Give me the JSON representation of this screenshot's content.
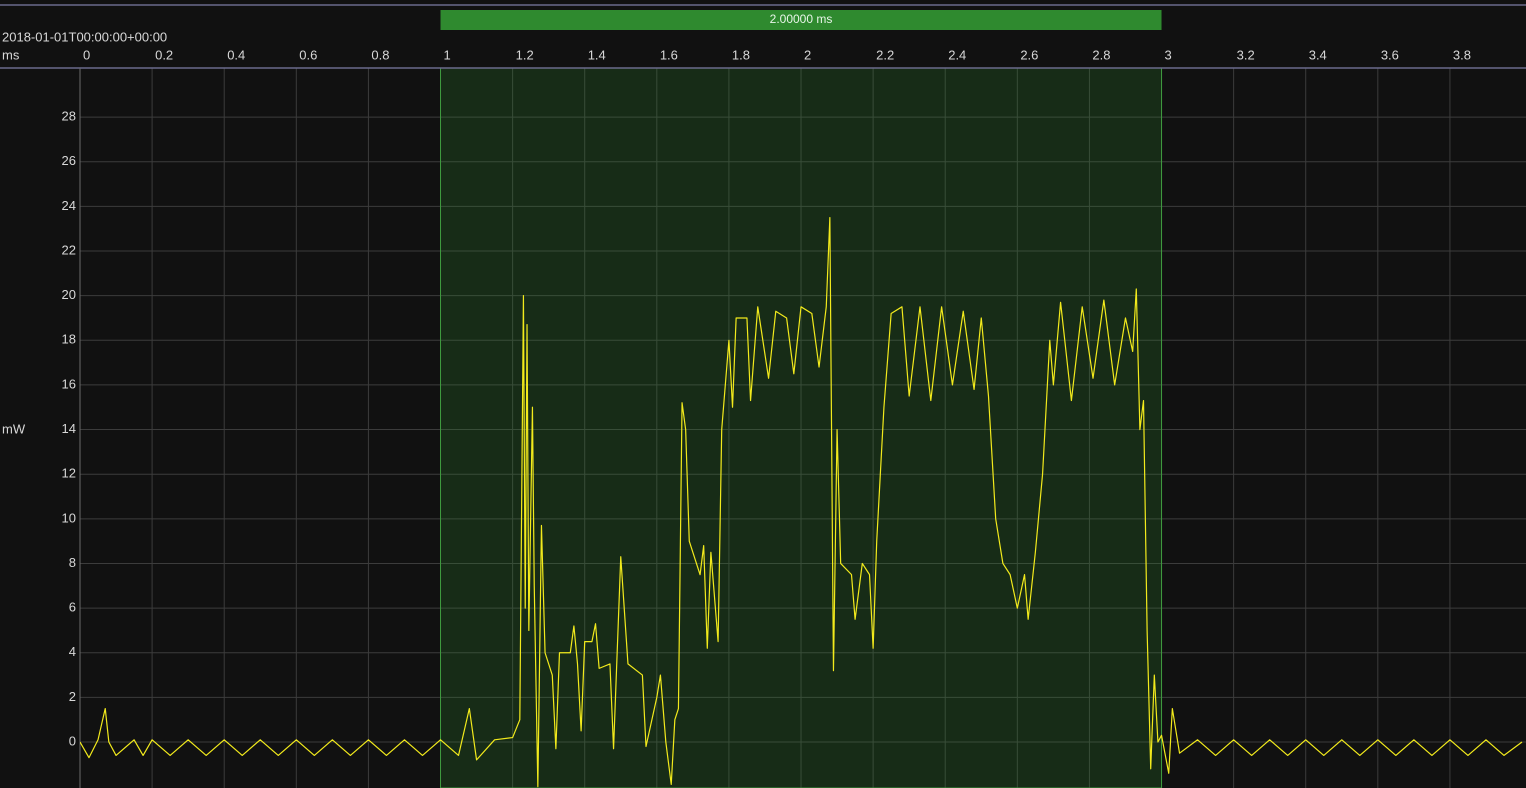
{
  "chart_data": {
    "type": "line",
    "timestamp": "2018-01-01T00:00:00+00:00",
    "x_label": "ms",
    "y_label": "mW",
    "selection": {
      "start": 1,
      "end": 3,
      "label": "2.00000 ms"
    },
    "color": "#f2ea1c",
    "grid": true,
    "xlim": [
      0,
      4.011
    ],
    "ylim": [
      -2.06,
      30.2
    ],
    "xticks": [
      0,
      0.2,
      0.4,
      0.6,
      0.8,
      1,
      1.2,
      1.4,
      1.6,
      1.8,
      2,
      2.2,
      2.4,
      2.6,
      2.8,
      3,
      3.2,
      3.4,
      3.6,
      3.8
    ],
    "yticks": [
      0,
      2,
      4,
      6,
      8,
      10,
      12,
      14,
      16,
      18,
      20,
      22,
      24,
      26,
      28
    ],
    "x": [
      0,
      0.025,
      0.05,
      0.07,
      0.08,
      0.1,
      0.15,
      0.175,
      0.2,
      0.25,
      0.3,
      0.35,
      0.4,
      0.45,
      0.5,
      0.55,
      0.6,
      0.65,
      0.7,
      0.75,
      0.8,
      0.85,
      0.9,
      0.95,
      1.0,
      1.05,
      1.08,
      1.1,
      1.15,
      1.2,
      1.22,
      1.23,
      1.235,
      1.24,
      1.245,
      1.255,
      1.26,
      1.27,
      1.28,
      1.29,
      1.31,
      1.32,
      1.33,
      1.36,
      1.37,
      1.38,
      1.39,
      1.4,
      1.42,
      1.43,
      1.44,
      1.47,
      1.48,
      1.5,
      1.52,
      1.56,
      1.57,
      1.6,
      1.61,
      1.625,
      1.64,
      1.65,
      1.66,
      1.67,
      1.68,
      1.69,
      1.72,
      1.73,
      1.74,
      1.75,
      1.77,
      1.78,
      1.8,
      1.81,
      1.82,
      1.85,
      1.86,
      1.88,
      1.91,
      1.93,
      1.96,
      1.98,
      2.0,
      2.03,
      2.05,
      2.07,
      2.08,
      2.09,
      2.1,
      2.11,
      2.14,
      2.15,
      2.17,
      2.19,
      2.2,
      2.21,
      2.23,
      2.25,
      2.28,
      2.3,
      2.33,
      2.36,
      2.39,
      2.42,
      2.45,
      2.48,
      2.5,
      2.52,
      2.54,
      2.56,
      2.58,
      2.6,
      2.62,
      2.63,
      2.65,
      2.67,
      2.69,
      2.7,
      2.72,
      2.75,
      2.78,
      2.81,
      2.84,
      2.87,
      2.9,
      2.92,
      2.93,
      2.94,
      2.95,
      2.96,
      2.97,
      2.98,
      2.99,
      3.0,
      3.02,
      3.03,
      3.05,
      3.1,
      3.15,
      3.2,
      3.25,
      3.3,
      3.35,
      3.4,
      3.45,
      3.5,
      3.55,
      3.6,
      3.65,
      3.7,
      3.75,
      3.8,
      3.85,
      3.9,
      3.95,
      4.0
    ],
    "values": [
      0,
      -0.7,
      0.1,
      1.5,
      0,
      -0.6,
      0.1,
      -0.6,
      0.1,
      -0.6,
      0.1,
      -0.6,
      0.1,
      -0.6,
      0.1,
      -0.6,
      0.1,
      -0.6,
      0.1,
      -0.6,
      0.1,
      -0.6,
      0.1,
      -0.6,
      0.1,
      -0.6,
      1.5,
      -0.8,
      0.1,
      0.2,
      1,
      20,
      6,
      18.7,
      5,
      15,
      7,
      -2,
      9.7,
      4,
      3,
      -0.3,
      4,
      4,
      5.2,
      3.5,
      0.5,
      4.5,
      4.5,
      5.3,
      3.3,
      3.5,
      -0.3,
      8.3,
      3.5,
      3,
      -0.2,
      2,
      3,
      0,
      -1.9,
      1,
      1.5,
      15.2,
      14,
      9,
      7.5,
      8.8,
      4.2,
      8.5,
      4.5,
      14,
      18,
      15,
      19,
      19,
      15.3,
      19.5,
      16.3,
      19.3,
      19,
      16.5,
      19.5,
      19.2,
      16.8,
      19.5,
      23.5,
      3.2,
      14,
      8,
      7.5,
      5.5,
      8,
      7.5,
      4.2,
      9,
      15,
      19.2,
      19.5,
      15.5,
      19.5,
      15.3,
      19.5,
      16,
      19.3,
      15.8,
      19,
      15.5,
      10,
      8,
      7.5,
      6,
      7.5,
      5.5,
      8.5,
      12,
      18,
      16,
      19.7,
      15.3,
      19.5,
      16.3,
      19.8,
      16,
      19,
      17.5,
      20.3,
      14,
      15.3,
      5,
      -1.2,
      3,
      0,
      0.3,
      -1.4,
      1.5,
      -0.5,
      0.1,
      -0.6,
      0.1,
      -0.6,
      0.1,
      -0.6,
      0.1,
      -0.6,
      0.1,
      -0.6,
      0.1,
      -0.6,
      0.1,
      -0.6,
      0.1,
      -0.6,
      0.1,
      -0.6,
      0
    ]
  }
}
